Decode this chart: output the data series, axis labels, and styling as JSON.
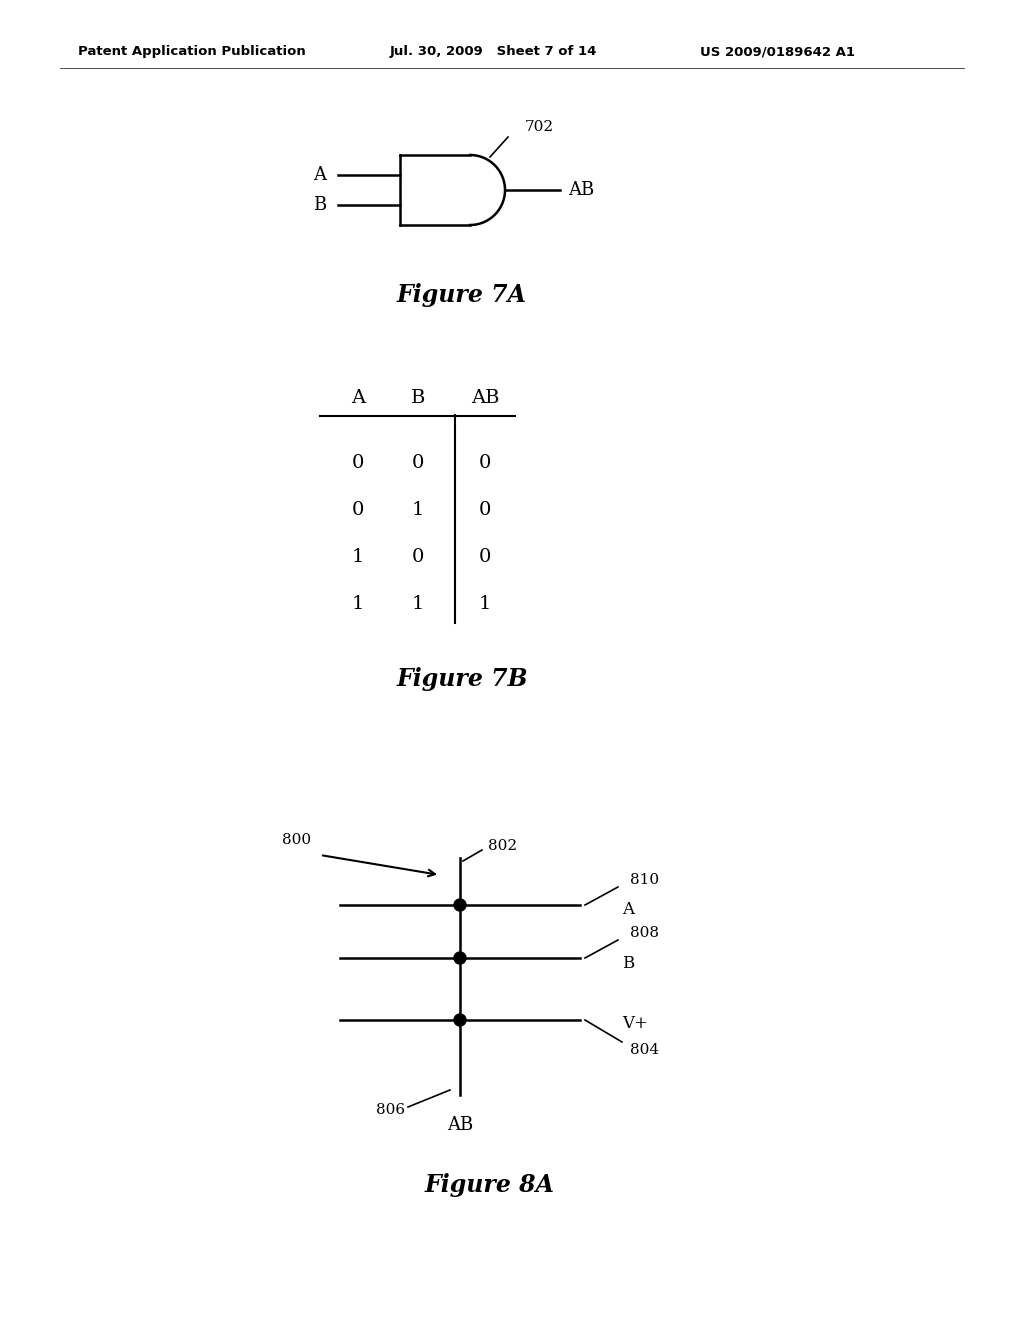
{
  "bg_color": "#ffffff",
  "header_left": "Patent Application Publication",
  "header_mid": "Jul. 30, 2009   Sheet 7 of 14",
  "header_right": "US 2009/0189642 A1",
  "fig7a_caption": "Figure 7A",
  "fig7b_caption": "Figure 7B",
  "fig8a_caption": "Figure 8A",
  "truth_table": {
    "headers": [
      "A",
      "B",
      "AB"
    ],
    "rows": [
      [
        "0",
        "0",
        "0"
      ],
      [
        "0",
        "1",
        "0"
      ],
      [
        "1",
        "0",
        "0"
      ],
      [
        "1",
        "1",
        "1"
      ]
    ]
  }
}
